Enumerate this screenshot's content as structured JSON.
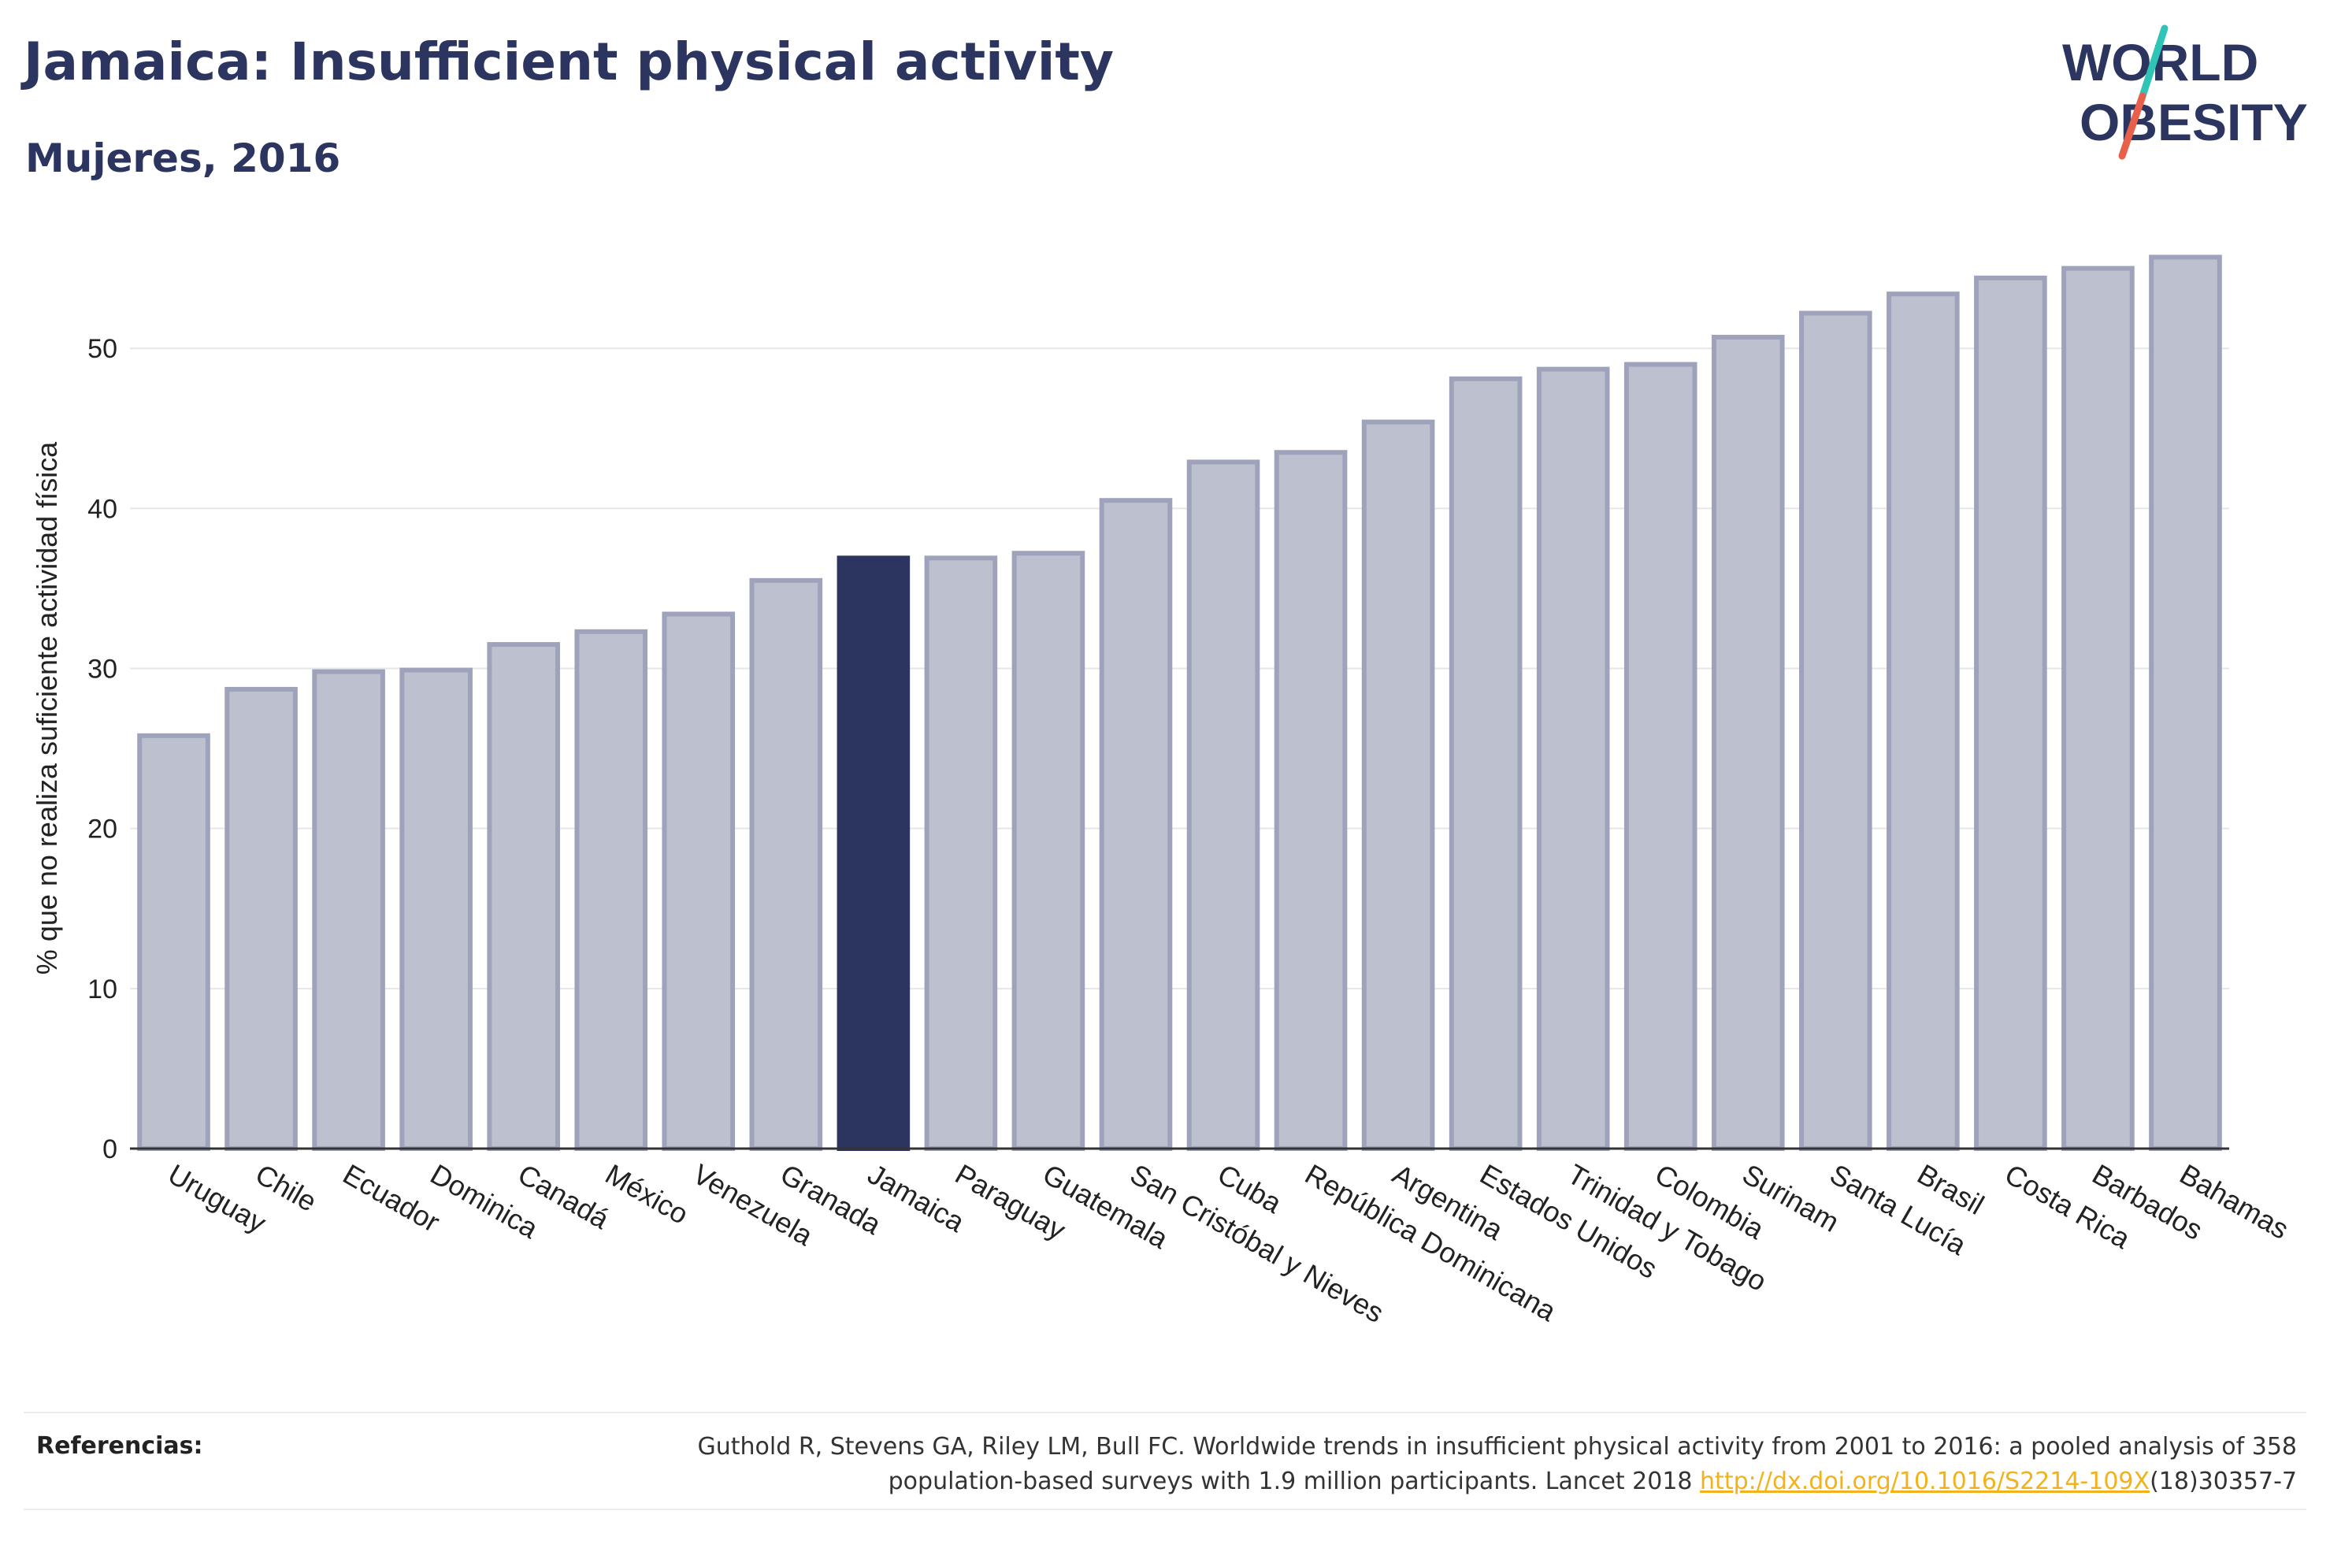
{
  "header": {
    "title": "Jamaica: Insufficient physical activity",
    "subtitle": "Mujeres, 2016"
  },
  "logo": {
    "line1": "WORLD",
    "line2": "OBESITY",
    "slash_color_top": "#2ec4b6",
    "slash_color_bottom": "#e8604c"
  },
  "chart_data": {
    "type": "bar",
    "title": "",
    "xlabel": "",
    "ylabel": "% que no realiza suficiente actividad física",
    "ylim": [
      0,
      57
    ],
    "yticks": [
      0,
      10,
      20,
      30,
      40,
      50
    ],
    "grid": true,
    "highlight": "Jamaica",
    "colors": {
      "bar": "#bdc0cf",
      "bar_edge": "#9ea3bb",
      "highlight": "#2b3560"
    },
    "categories": [
      "Uruguay",
      "Chile",
      "Ecuador",
      "Dominica",
      "Canadá",
      "México",
      "Venezuela",
      "Granada",
      "Jamaica",
      "Paraguay",
      "Guatemala",
      "San Cristóbal y Nieves",
      "Cuba",
      "República Dominicana",
      "Argentina",
      "Estados Unidos",
      "Trinidad y Tobago",
      "Colombia",
      "Surinam",
      "Santa Lucía",
      "Brasil",
      "Costa Rica",
      "Barbados",
      "Bahamas"
    ],
    "values": [
      25.8,
      28.7,
      29.8,
      29.9,
      31.5,
      32.3,
      33.4,
      35.5,
      36.9,
      36.9,
      37.2,
      40.5,
      42.9,
      43.5,
      45.4,
      48.1,
      48.7,
      49.0,
      50.7,
      52.2,
      53.4,
      54.4,
      55.0,
      55.7
    ]
  },
  "references": {
    "label": "Referencias:",
    "line1": "Guthold R, Stevens GA, Riley LM, Bull FC. Worldwide trends in insufficient physical activity from 2001 to 2016: a pooled analysis of 358",
    "line2_prefix": "population-based surveys with 1.9 million participants. Lancet 2018 ",
    "link": "http://dx.doi.org/10.1016/S2214-109X",
    "line2_suffix": "(18)30357-7"
  }
}
